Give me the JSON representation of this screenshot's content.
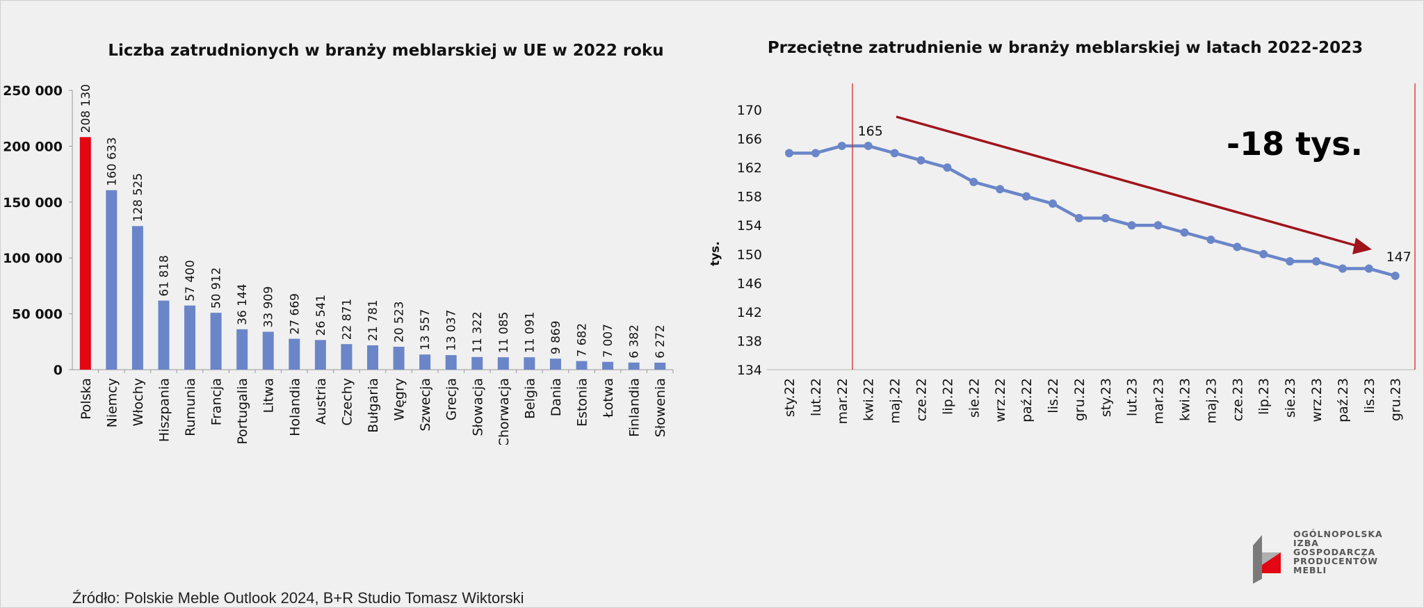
{
  "chart_data": [
    {
      "type": "bar",
      "title": "Liczba zatrudnionych w branży meblarskiej w UE w 2022 roku",
      "categories": [
        "Polska",
        "Niemcy",
        "Włochy",
        "Hiszpania",
        "Rumunia",
        "Francja",
        "Portugalia",
        "Litwa",
        "Holandia",
        "Austria",
        "Czechy",
        "Bułgaria",
        "Węgry",
        "Szwecja",
        "Grecja",
        "Słowacja",
        "Chorwacja",
        "Belgia",
        "Dania",
        "Estonia",
        "Łotwa",
        "Finlandia",
        "Słowenia"
      ],
      "values": [
        208130,
        160633,
        128525,
        61818,
        57400,
        50912,
        36144,
        33909,
        27669,
        26541,
        22871,
        21781,
        20523,
        13557,
        13037,
        11322,
        11085,
        11091,
        9869,
        7682,
        7007,
        6382,
        6272
      ],
      "value_labels": [
        "208 130",
        "160 633",
        "128 525",
        "61 818",
        "57 400",
        "50 912",
        "36 144",
        "33 909",
        "27 669",
        "26 541",
        "22 871",
        "21 781",
        "20 523",
        "13 557",
        "13 037",
        "11 322",
        "11 085",
        "11 091",
        "9 869",
        "7 682",
        "7 007",
        "6 382",
        "6 272"
      ],
      "highlight_index": 0,
      "colors": {
        "highlight": "#e30613",
        "bar": "#6a86c8"
      },
      "ylim": [
        0,
        250000
      ],
      "yticks": [
        0,
        50000,
        100000,
        150000,
        200000,
        250000
      ],
      "ytick_labels": [
        "0",
        "50 000",
        "100 000",
        "150 000",
        "200 000",
        "250 000"
      ],
      "xlabel": "",
      "ylabel": ""
    },
    {
      "type": "line",
      "title": "Przeciętne zatrudnienie w branży meblarskiej w latach 2022-2023",
      "categories": [
        "sty.22",
        "lut.22",
        "mar.22",
        "kwi.22",
        "maj.22",
        "cze.22",
        "lip.22",
        "sie.22",
        "wrz.22",
        "paź.22",
        "lis.22",
        "gru.22",
        "sty.23",
        "lut.23",
        "mar.23",
        "kwi.23",
        "maj.23",
        "cze.23",
        "lip.23",
        "sie.23",
        "wrz.23",
        "paź.23",
        "lis.23",
        "gru.23"
      ],
      "values": [
        164,
        164,
        165,
        165,
        164,
        163,
        162,
        160,
        159,
        158,
        157,
        155,
        155,
        154,
        154,
        153,
        152,
        151,
        150,
        149,
        149,
        148,
        148,
        147
      ],
      "ylim": [
        134,
        170
      ],
      "yticks": [
        134,
        138,
        142,
        146,
        150,
        154,
        158,
        162,
        166,
        170
      ],
      "ylabel": "tys.",
      "xlabel": "",
      "point_labels": [
        {
          "index": 3,
          "text": "165"
        },
        {
          "index": 23,
          "text": "147"
        }
      ],
      "annotation": "-18 tys.",
      "colors": {
        "line": "#6a86c8",
        "trend_arrow": "#a0141c",
        "marker_line": "#d62728"
      }
    }
  ],
  "source": "Źródło: Polskie Meble Outlook 2024, B+R Studio Tomasz Wiktorski",
  "logo": {
    "lines": [
      "OGÓLNOPOLSKA",
      "IZBA",
      "GOSPODARCZA",
      "PRODUCENTÓW",
      "MEBLI"
    ]
  }
}
